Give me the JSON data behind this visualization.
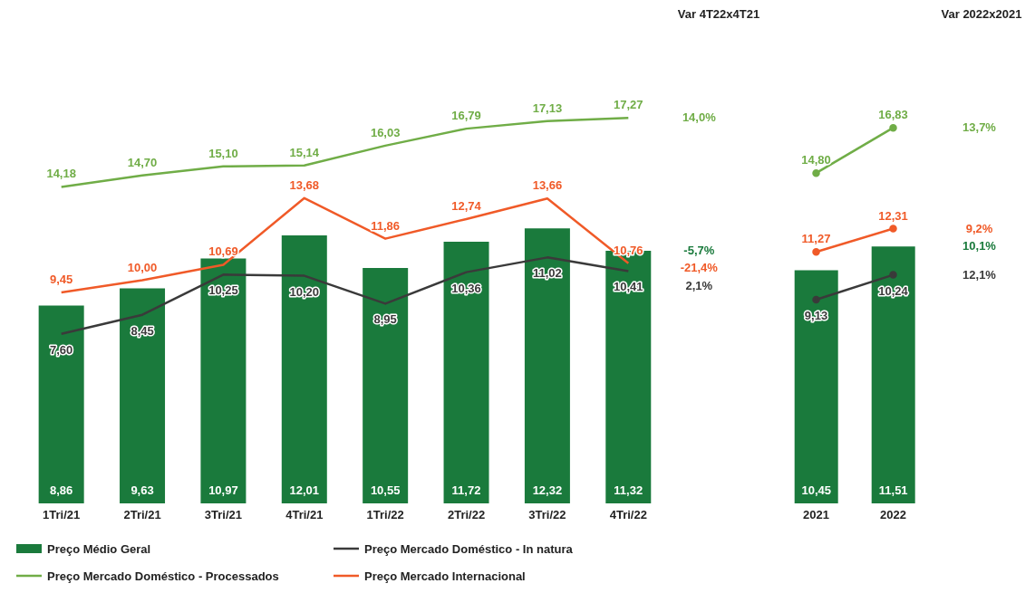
{
  "chart_data": [
    {
      "type": "bar",
      "categories": [
        "1Tri/21",
        "2Tri/21",
        "3Tri/21",
        "4Tri/21",
        "1Tri/22",
        "2Tri/22",
        "3Tri/22",
        "4Tri/22"
      ],
      "series": [
        {
          "name": "Preço Médio Geral",
          "color": "#1a7a3c",
          "values": [
            8.86,
            9.63,
            10.97,
            12.01,
            10.55,
            11.72,
            12.32,
            11.32
          ],
          "value_labels": [
            "8,86",
            "9,63",
            "10,97",
            "12,01",
            "10,55",
            "11,72",
            "12,32",
            "11,32"
          ]
        },
        {
          "type": "line",
          "name": "Preço Mercado Doméstico - In natura",
          "color": "#3a3a3a",
          "values": [
            7.6,
            8.45,
            10.25,
            10.2,
            8.95,
            10.36,
            11.02,
            10.41
          ],
          "value_labels": [
            "7,60",
            "8,45",
            "10,25",
            "10,20",
            "8,95",
            "10,36",
            "11,02",
            "10,41"
          ]
        },
        {
          "type": "line",
          "name": "Preço Mercado Doméstico - Processados",
          "color": "#70ad47",
          "values": [
            14.18,
            14.7,
            15.1,
            15.14,
            16.03,
            16.79,
            17.13,
            17.27
          ],
          "value_labels": [
            "14,18",
            "14,70",
            "15,10",
            "15,14",
            "16,03",
            "16,79",
            "17,13",
            "17,27"
          ]
        },
        {
          "type": "line",
          "name": "Preço Mercado Internacional",
          "color": "#f05a28",
          "values": [
            9.45,
            10.0,
            10.69,
            13.68,
            11.86,
            12.74,
            13.66,
            10.76
          ],
          "value_labels": [
            "9,45",
            "10,00",
            "10,69",
            "13,68",
            "11,86",
            "12,74",
            "13,66",
            "10,76"
          ]
        }
      ],
      "tick_labels": "x",
      "grid": false,
      "legend": "bottom",
      "marker": "none",
      "line_style": "solid",
      "annotations": [
        "Var 4T22x4T21",
        "-5,7%",
        "2,1%",
        "14,0%",
        "-21,4%"
      ]
    },
    {
      "type": "bar",
      "categories": [
        "2021",
        "2022"
      ],
      "series": [
        {
          "color": "#1a7a3c",
          "values": [
            10.45,
            11.51
          ],
          "value_labels": [
            "10,45",
            "11,51"
          ]
        },
        {
          "type": "line",
          "color": "#3a3a3a",
          "values": [
            9.13,
            10.24
          ],
          "value_labels": [
            "9,13",
            "10,24"
          ]
        },
        {
          "type": "line",
          "color": "#70ad47",
          "values": [
            14.8,
            16.83
          ],
          "value_labels": [
            "14,80",
            "16,83"
          ]
        },
        {
          "type": "line",
          "color": "#f05a28",
          "values": [
            11.27,
            12.31
          ],
          "value_labels": [
            "11,27",
            "12,31"
          ]
        }
      ],
      "tick_labels": "x",
      "grid": false,
      "legend": false,
      "marker": "circle",
      "line_style": "solid",
      "annotations": [
        "Var 2022x2021",
        "10,1%",
        "12,1%",
        "13,7%",
        "9,2%"
      ]
    }
  ]
}
